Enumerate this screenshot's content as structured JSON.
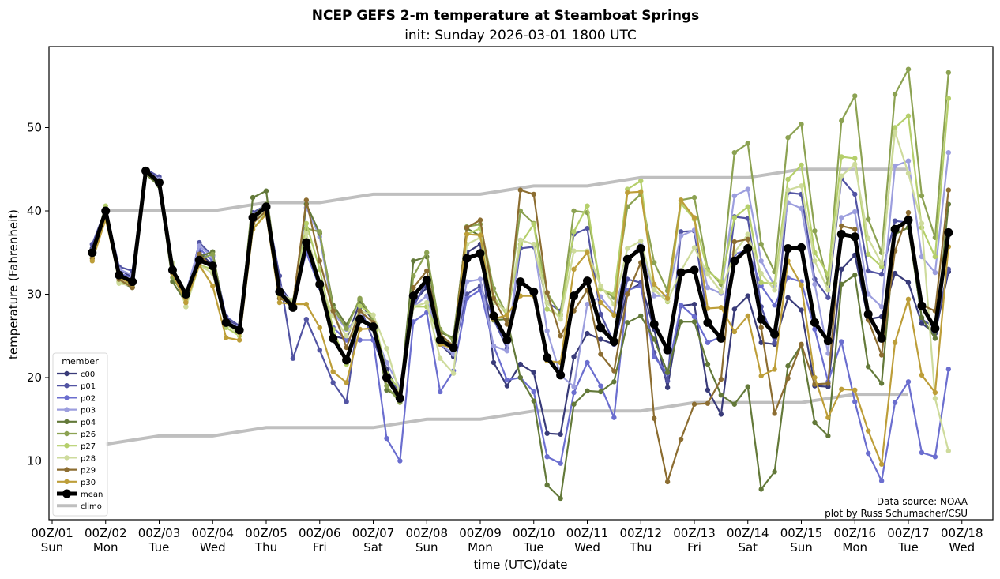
{
  "chart_data": {
    "type": "line",
    "title": "NCEP GEFS 2-m temperature at Steamboat Springs",
    "subtitle": "init: Sunday 2026-03-01 1800 UTC",
    "xlabel": "time (UTC)/date",
    "ylabel": "temperature (Fahrenheit)",
    "ylim": [
      3,
      59.5
    ],
    "xlim_days": [
      0.95,
      18.55
    ],
    "yticks": [
      10,
      20,
      30,
      40,
      50
    ],
    "xticks": [
      {
        "day": 1,
        "label": "00Z/01",
        "sub": "Sun"
      },
      {
        "day": 2,
        "label": "00Z/02",
        "sub": "Mon"
      },
      {
        "day": 3,
        "label": "00Z/03",
        "sub": "Tue"
      },
      {
        "day": 4,
        "label": "00Z/04",
        "sub": "Wed"
      },
      {
        "day": 5,
        "label": "00Z/05",
        "sub": "Thu"
      },
      {
        "day": 6,
        "label": "00Z/06",
        "sub": "Fri"
      },
      {
        "day": 7,
        "label": "00Z/07",
        "sub": "Sat"
      },
      {
        "day": 8,
        "label": "00Z/08",
        "sub": "Sun"
      },
      {
        "day": 9,
        "label": "00Z/09",
        "sub": "Mon"
      },
      {
        "day": 10,
        "label": "00Z/10",
        "sub": "Tue"
      },
      {
        "day": 11,
        "label": "00Z/11",
        "sub": "Wed"
      },
      {
        "day": 12,
        "label": "00Z/12",
        "sub": "Thu"
      },
      {
        "day": 13,
        "label": "00Z/13",
        "sub": "Fri"
      },
      {
        "day": 14,
        "label": "00Z/14",
        "sub": "Sat"
      },
      {
        "day": 15,
        "label": "00Z/15",
        "sub": "Sun"
      },
      {
        "day": 16,
        "label": "00Z/16",
        "sub": "Mon"
      },
      {
        "day": 17,
        "label": "00Z/17",
        "sub": "Tue"
      },
      {
        "day": 18,
        "label": "00Z/18",
        "sub": "Wed"
      }
    ],
    "time_start_day": 1.75,
    "time_step_hours": 6,
    "grid": false,
    "legend": {
      "title": "member",
      "placement": "lower-left"
    },
    "credits": [
      "Data source: NOAA",
      "plot by Russ Schumacher/CSU"
    ],
    "series": [
      {
        "name": "c00",
        "color": "#393b79",
        "values": [
          35.5,
          40.0,
          33.0,
          32.0,
          44.8,
          43.8,
          33.0,
          30.0,
          35.0,
          33.5,
          27.0,
          26.0,
          39.5,
          40.5,
          31.0,
          28.8,
          36.5,
          31.5,
          25.0,
          24.6,
          29.0,
          26.8,
          21.0,
          18.0,
          29.0,
          30.8,
          24.0,
          22.5,
          35.0,
          36.0,
          21.8,
          19.0,
          21.6,
          20.6,
          13.3,
          13.2,
          22.5,
          25.3,
          24.6,
          24.0,
          30.4,
          31.3,
          25.8,
          18.8,
          28.6,
          28.8,
          18.5,
          15.6,
          28.2,
          29.8,
          24.2,
          24.0,
          29.6,
          28.1,
          19.0,
          18.9,
          33.0,
          34.7,
          27.0,
          27.3,
          32.5,
          31.4,
          26.5,
          25.3,
          32.7
        ]
      },
      {
        "name": "p01",
        "color": "#5254a3",
        "values": [
          36.0,
          40.2,
          33.3,
          32.8,
          45.0,
          44.1,
          33.2,
          29.5,
          36.2,
          34.6,
          27.3,
          26.2,
          39.8,
          40.7,
          32.2,
          22.3,
          27.0,
          23.3,
          19.4,
          17.1,
          28.5,
          24.5,
          20.5,
          18.0,
          28.5,
          31.5,
          25.0,
          23.2,
          30.0,
          31.0,
          27.0,
          23.5,
          35.5,
          35.7,
          29.0,
          28.0,
          37.2,
          37.9,
          27.6,
          24.2,
          31.8,
          31.4,
          23.0,
          19.6,
          37.5,
          37.6,
          26.8,
          24.9,
          39.3,
          39.1,
          28.5,
          24.2,
          42.2,
          42.0,
          31.8,
          29.6,
          43.9,
          42.0,
          32.8,
          32.4,
          38.8,
          38.6,
          27.0,
          26.0,
          33.0
        ]
      },
      {
        "name": "p02",
        "color": "#6b6ecf",
        "values": [
          35.2,
          39.5,
          32.5,
          32.0,
          44.5,
          43.5,
          32.5,
          30.0,
          35.5,
          34.0,
          26.5,
          25.8,
          39.0,
          40.0,
          30.5,
          29.0,
          35.0,
          30.8,
          26.0,
          24.5,
          24.5,
          24.5,
          12.7,
          10.0,
          26.7,
          27.8,
          18.3,
          20.8,
          29.5,
          30.5,
          23.8,
          19.7,
          20.0,
          18.3,
          10.5,
          9.7,
          18.2,
          21.8,
          19.0,
          15.2,
          30.5,
          31.0,
          22.5,
          20.5,
          28.7,
          27.3,
          24.2,
          24.9,
          34.8,
          35.3,
          31.0,
          28.7,
          32.0,
          31.5,
          25.8,
          19.5,
          24.3,
          17.1,
          10.9,
          7.6,
          17.0,
          19.5,
          11.0,
          10.5,
          21.0
        ]
      },
      {
        "name": "p03",
        "color": "#9c9ede",
        "values": [
          35.3,
          39.7,
          33.0,
          32.3,
          44.7,
          43.8,
          32.8,
          30.2,
          35.8,
          34.5,
          26.8,
          26.0,
          39.5,
          40.3,
          30.8,
          28.6,
          40.4,
          36.9,
          27.8,
          25.8,
          27.3,
          25.8,
          21.8,
          18.8,
          28.5,
          29.8,
          24.0,
          22.8,
          31.5,
          31.8,
          23.8,
          23.2,
          36.5,
          36.0,
          25.6,
          20.3,
          18.9,
          28.8,
          29.7,
          27.7,
          34.0,
          36.0,
          29.8,
          29.8,
          37.0,
          37.7,
          30.8,
          30.1,
          41.8,
          42.6,
          34.0,
          31.0,
          41.0,
          40.3,
          31.2,
          22.9,
          39.2,
          39.9,
          30.0,
          28.5,
          45.4,
          46.0,
          34.5,
          32.6,
          47.0
        ]
      },
      {
        "name": "p04",
        "color": "#637939",
        "values": [
          34.8,
          40.0,
          31.5,
          30.8,
          44.4,
          43.0,
          31.5,
          29.0,
          34.5,
          35.1,
          26.6,
          25.7,
          41.6,
          42.4,
          30.0,
          28.9,
          40.8,
          37.3,
          28.7,
          26.3,
          29.3,
          26.8,
          18.5,
          17.6,
          34.0,
          34.5,
          25.4,
          24.8,
          37.9,
          37.0,
          26.9,
          27.0,
          20.0,
          17.2,
          7.1,
          5.5,
          16.8,
          18.4,
          18.3,
          19.5,
          26.6,
          27.4,
          24.6,
          20.6,
          26.7,
          26.7,
          21.6,
          17.9,
          16.8,
          18.9,
          6.6,
          8.7,
          21.4,
          23.9,
          14.6,
          13.0,
          31.2,
          32.3,
          21.3,
          19.3,
          37.2,
          38.0,
          27.2,
          24.7,
          40.8
        ]
      },
      {
        "name": "p26",
        "color": "#8ca252",
        "values": [
          35.1,
          40.3,
          32.0,
          31.5,
          44.5,
          43.3,
          32.0,
          29.5,
          34.2,
          34.8,
          26.6,
          25.5,
          39.4,
          40.8,
          30.0,
          29.0,
          37.9,
          37.5,
          28.3,
          25.9,
          29.5,
          27.0,
          19.0,
          17.0,
          32.2,
          35.0,
          25.8,
          24.4,
          38.1,
          38.4,
          30.7,
          27.5,
          40.0,
          38.5,
          30.2,
          27.6,
          40.0,
          39.8,
          30.7,
          29.6,
          40.5,
          42.0,
          33.8,
          30.4,
          41.3,
          41.6,
          33.0,
          31.2,
          47.0,
          48.1,
          36.0,
          32.7,
          48.8,
          50.4,
          37.6,
          31.3,
          50.8,
          53.8,
          39.0,
          35.0,
          54.0,
          57.0,
          41.8,
          36.8,
          56.6
        ]
      },
      {
        "name": "p27",
        "color": "#b5cf6b",
        "values": [
          35.0,
          40.6,
          31.5,
          31.3,
          44.6,
          43.5,
          33.5,
          28.5,
          33.5,
          33.0,
          26.0,
          25.0,
          37.8,
          39.8,
          29.8,
          28.6,
          38.5,
          33.0,
          25.8,
          21.6,
          28.6,
          27.5,
          20.5,
          18.5,
          28.5,
          28.5,
          24.8,
          23.7,
          37.2,
          37.9,
          29.7,
          27.5,
          36.0,
          38.4,
          28.2,
          27.4,
          37.5,
          40.6,
          30.6,
          30.0,
          42.6,
          43.6,
          30.6,
          29.1,
          40.9,
          39.0,
          32.8,
          31.5,
          39.2,
          40.5,
          31.4,
          31.3,
          43.8,
          45.5,
          35.0,
          32.4,
          46.5,
          46.3,
          34.8,
          33.3,
          50.0,
          51.4,
          38.0,
          34.5,
          53.5
        ]
      },
      {
        "name": "p28",
        "color": "#cedb9c",
        "values": [
          34.5,
          40.0,
          31.3,
          31.0,
          44.6,
          43.5,
          33.8,
          28.5,
          33.5,
          32.5,
          26.4,
          25.2,
          39.0,
          40.0,
          30.0,
          29.3,
          37.3,
          31.5,
          27.4,
          25.0,
          28.0,
          27.5,
          23.5,
          18.0,
          28.5,
          29.0,
          22.3,
          20.5,
          36.0,
          36.8,
          29.0,
          28.0,
          36.5,
          36.0,
          29.0,
          27.0,
          35.2,
          35.2,
          31.0,
          28.8,
          35.5,
          36.4,
          30.5,
          29.2,
          32.8,
          35.6,
          32.4,
          30.3,
          35.0,
          37.2,
          32.5,
          30.5,
          42.5,
          43.0,
          34.0,
          30.5,
          44.2,
          45.6,
          36.7,
          33.7,
          49.5,
          44.5,
          38.5,
          17.5,
          11.2
        ]
      },
      {
        "name": "p29",
        "color": "#8c6d31",
        "values": [
          34.3,
          39.6,
          31.8,
          30.8,
          44.7,
          43.4,
          32.5,
          29.5,
          34.8,
          33.2,
          26.8,
          25.4,
          38.5,
          40.0,
          29.5,
          28.8,
          41.3,
          34.0,
          28.0,
          23.6,
          28.0,
          26.6,
          19.7,
          18.0,
          30.8,
          32.8,
          25.2,
          23.8,
          38.0,
          38.9,
          29.5,
          26.4,
          42.5,
          42.0,
          30.2,
          25.0,
          28.0,
          30.5,
          22.8,
          20.8,
          30.0,
          33.8,
          15.1,
          7.5,
          12.6,
          16.8,
          16.9,
          19.8,
          36.3,
          36.6,
          26.0,
          15.7,
          19.9,
          24.0,
          19.2,
          19.3,
          38.2,
          37.8,
          26.9,
          22.7,
          35.2,
          39.8,
          28.7,
          28.0,
          42.5
        ]
      },
      {
        "name": "p30",
        "color": "#bd9e39",
        "values": [
          34.0,
          39.0,
          32.0,
          31.2,
          44.7,
          43.4,
          32.5,
          29.0,
          33.5,
          31.0,
          24.8,
          24.5,
          37.8,
          39.6,
          29.0,
          28.8,
          28.8,
          26.0,
          20.7,
          19.4,
          25.8,
          25.9,
          19.8,
          17.5,
          30.0,
          31.8,
          24.0,
          23.5,
          37.2,
          37.1,
          27.0,
          27.5,
          29.8,
          29.8,
          22.0,
          21.8,
          33.0,
          35.0,
          29.0,
          27.5,
          42.2,
          42.3,
          31.2,
          29.5,
          41.3,
          39.2,
          28.3,
          28.4,
          25.5,
          27.4,
          20.2,
          21.0,
          34.0,
          31.1,
          20.0,
          15.2,
          18.6,
          18.5,
          13.6,
          9.6,
          24.2,
          29.4,
          20.3,
          18.2,
          35.7
        ]
      },
      {
        "name": "mean",
        "color": "#000000",
        "values": [
          35.0,
          40.0,
          32.3,
          31.5,
          44.8,
          43.4,
          32.9,
          30.0,
          34.1,
          33.4,
          26.6,
          25.7,
          39.2,
          40.5,
          30.3,
          28.4,
          36.2,
          31.2,
          24.7,
          22.1,
          27.0,
          26.1,
          20.0,
          17.5,
          29.8,
          31.7,
          24.5,
          23.6,
          34.3,
          34.9,
          27.4,
          24.5,
          31.5,
          30.3,
          22.4,
          20.3,
          29.8,
          31.6,
          26.0,
          24.3,
          34.2,
          35.5,
          26.4,
          23.3,
          32.6,
          32.9,
          26.6,
          24.7,
          34.0,
          35.5,
          27.0,
          25.2,
          35.5,
          35.6,
          26.6,
          24.4,
          37.2,
          36.9,
          27.6,
          24.7,
          37.8,
          38.9,
          28.6,
          25.9,
          37.4
        ]
      },
      {
        "name": "climo",
        "color": "#bfbfbf",
        "high": {
          "days": [
            2,
            3,
            4,
            5,
            6,
            7,
            8,
            9,
            10,
            11,
            12,
            13,
            14,
            15,
            16,
            17
          ],
          "values": [
            40,
            40,
            40,
            41,
            41,
            42,
            42,
            42,
            43,
            43,
            44,
            44,
            44,
            45,
            45,
            45
          ]
        },
        "low": {
          "days": [
            2,
            3,
            4,
            5,
            6,
            7,
            8,
            9,
            10,
            11,
            12,
            13,
            14,
            15,
            16,
            17
          ],
          "values": [
            12,
            13,
            13,
            14,
            14,
            14,
            15,
            15,
            16,
            16,
            16,
            17,
            17,
            17,
            18,
            18
          ]
        }
      }
    ]
  }
}
